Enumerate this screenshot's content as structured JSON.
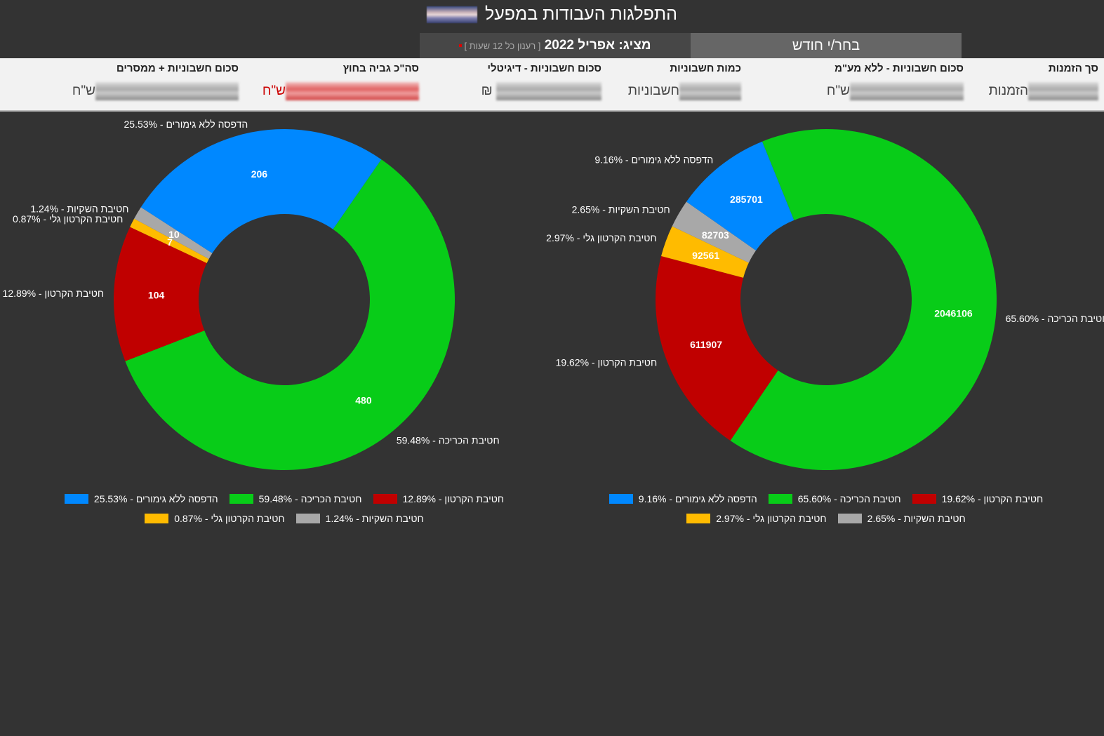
{
  "header": {
    "title": "התפלגות העבודות במפעל",
    "showing": "מציג: אפריל 2022",
    "refresh_note": "[ רענון כל 12 שעות ]",
    "pick_month": "בחר/י חודש"
  },
  "kpis": [
    {
      "label": "סך הזמנות",
      "unit": "הזמנות"
    },
    {
      "label": "סכום חשבוניות - ללא מע\"מ",
      "unit": "ש\"ח"
    },
    {
      "label": "כמות חשבוניות",
      "unit": "חשבוניות"
    },
    {
      "label": "סכום חשבוניות - דיגיטלי",
      "unit": "₪"
    },
    {
      "label": "סה\"כ גביה בחוץ",
      "unit": "ש\"ח"
    },
    {
      "label": "סכום חשבוניות + ממסרים",
      "unit": "ש\"ח"
    }
  ],
  "chart_data": [
    {
      "type": "pie",
      "variant": "donut",
      "title": "",
      "slices": [
        {
          "name": "חטיבת הכריכה",
          "value": 2046106,
          "pct": "65.60%",
          "color": "#08cc18"
        },
        {
          "name": "חטיבת הקרטון",
          "value": 611907,
          "pct": "19.62%",
          "color": "#c00000"
        },
        {
          "name": "חטיבת הקרטון גלי",
          "value": 92561,
          "pct": "2.97%",
          "color": "#ffbb00"
        },
        {
          "name": "חטיבת השקיות",
          "value": 82703,
          "pct": "2.65%",
          "color": "#a8a8a8"
        },
        {
          "name": "הדפסה ללא גימורים",
          "value": 285701,
          "pct": "9.16%",
          "color": "#0088ff"
        }
      ],
      "legend_order": [
        1,
        0,
        4,
        3,
        2
      ],
      "legend": "bottom"
    },
    {
      "type": "pie",
      "variant": "donut",
      "title": "",
      "slices": [
        {
          "name": "חטיבת הכריכה",
          "value": 480,
          "pct": "59.48%",
          "color": "#08cc18"
        },
        {
          "name": "חטיבת הקרטון",
          "value": 104,
          "pct": "12.89%",
          "color": "#c00000"
        },
        {
          "name": "חטיבת הקרטון גלי",
          "value": 7,
          "pct": "0.87%",
          "color": "#ffbb00"
        },
        {
          "name": "חטיבת השקיות",
          "value": 10,
          "pct": "1.24%",
          "color": "#a8a8a8"
        },
        {
          "name": "הדפסה ללא גימורים",
          "value": 206,
          "pct": "25.53%",
          "color": "#0088ff"
        }
      ],
      "legend_order": [
        1,
        0,
        4,
        3,
        2
      ],
      "legend": "bottom"
    }
  ]
}
